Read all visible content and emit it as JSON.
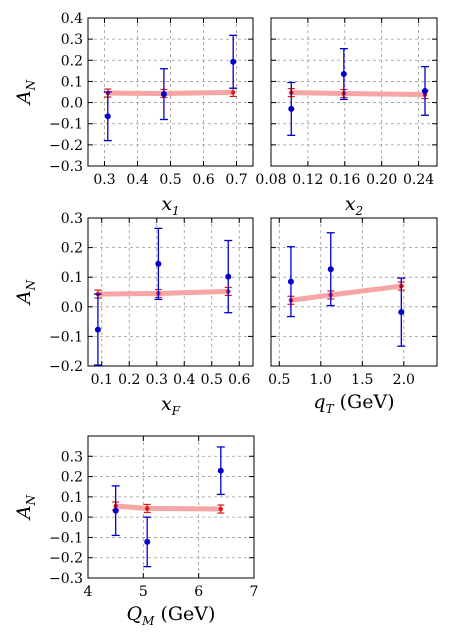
{
  "chart_data": [
    {
      "type": "scatter",
      "panel": "x1",
      "xlabel": {
        "main": "x",
        "sub": "1",
        "unit": ""
      },
      "ylabel": {
        "main": "A",
        "sub": "N"
      },
      "xlim": [
        0.25,
        0.75
      ],
      "ylim": [
        -0.3,
        0.4
      ],
      "xticks": [
        0.3,
        0.4,
        0.5,
        0.6,
        0.7
      ],
      "xtick_labels": [
        "0.3",
        "0.4",
        "0.5",
        "0.6",
        "0.7"
      ],
      "yticks": [
        -0.3,
        -0.2,
        -0.1,
        0.0,
        0.1,
        0.2,
        0.3,
        0.4
      ],
      "ytick_labels": [
        "−0.3",
        "−0.2",
        "−0.1",
        "0.0",
        "0.1",
        "0.2",
        "0.3",
        "0.4"
      ],
      "grid": true,
      "series": [
        {
          "kind": "data",
          "color": "#0000cc",
          "points": [
            {
              "x": 0.31,
              "y": -0.065,
              "err": 0.115
            },
            {
              "x": 0.48,
              "y": 0.04,
              "err": 0.12
            },
            {
              "x": 0.69,
              "y": 0.193,
              "err": 0.125
            }
          ]
        },
        {
          "kind": "model",
          "color": "#f08080",
          "points": [
            {
              "x": 0.31,
              "y": 0.045
            },
            {
              "x": 0.48,
              "y": 0.043
            },
            {
              "x": 0.69,
              "y": 0.048
            }
          ]
        }
      ]
    },
    {
      "type": "scatter",
      "panel": "x2",
      "xlabel": {
        "main": "x",
        "sub": "2",
        "unit": ""
      },
      "ylabel": {
        "main": "",
        "sub": ""
      },
      "xlim": [
        0.08,
        0.26
      ],
      "ylim": [
        -0.3,
        0.4
      ],
      "xticks": [
        0.08,
        0.12,
        0.16,
        0.2,
        0.24
      ],
      "xtick_labels": [
        "0.08",
        "0.12",
        "0.16",
        "0.20",
        "0.24"
      ],
      "yticks": [],
      "ytick_labels": [],
      "grid": true,
      "series": [
        {
          "kind": "data",
          "color": "#0000cc",
          "points": [
            {
              "x": 0.102,
              "y": -0.03,
              "err": 0.125
            },
            {
              "x": 0.159,
              "y": 0.135,
              "err": 0.12
            },
            {
              "x": 0.247,
              "y": 0.055,
              "err": 0.115
            }
          ]
        },
        {
          "kind": "model",
          "color": "#f08080",
          "points": [
            {
              "x": 0.102,
              "y": 0.047
            },
            {
              "x": 0.159,
              "y": 0.043
            },
            {
              "x": 0.247,
              "y": 0.038
            }
          ]
        }
      ]
    },
    {
      "type": "scatter",
      "panel": "xF",
      "xlabel": {
        "main": "x",
        "sub": "F",
        "unit": ""
      },
      "ylabel": {
        "main": "A",
        "sub": "N"
      },
      "xlim": [
        0.05,
        0.65
      ],
      "ylim": [
        -0.2,
        0.3
      ],
      "xticks": [
        0.1,
        0.2,
        0.3,
        0.4,
        0.5,
        0.6
      ],
      "xtick_labels": [
        "0.1",
        "0.2",
        "0.3",
        "0.4",
        "0.5",
        "0.6"
      ],
      "yticks": [
        -0.2,
        -0.1,
        0.0,
        0.1,
        0.2,
        0.3
      ],
      "ytick_labels": [
        "−0.2",
        "−0.1",
        "0.0",
        "0.1",
        "0.2",
        "0.3"
      ],
      "grid": true,
      "series": [
        {
          "kind": "data",
          "color": "#0000cc",
          "points": [
            {
              "x": 0.086,
              "y": -0.077,
              "err": 0.12
            },
            {
              "x": 0.306,
              "y": 0.145,
              "err": 0.12
            },
            {
              "x": 0.56,
              "y": 0.102,
              "err": 0.122
            }
          ]
        },
        {
          "kind": "model",
          "color": "#f08080",
          "points": [
            {
              "x": 0.086,
              "y": 0.043
            },
            {
              "x": 0.306,
              "y": 0.045
            },
            {
              "x": 0.56,
              "y": 0.052
            }
          ]
        }
      ]
    },
    {
      "type": "scatter",
      "panel": "qT",
      "xlabel": {
        "main": "q",
        "sub": "T",
        "unit": " (GeV)"
      },
      "ylabel": {
        "main": "",
        "sub": ""
      },
      "xlim": [
        0.4,
        2.4
      ],
      "ylim": [
        -0.2,
        0.3
      ],
      "xticks": [
        0.5,
        1.0,
        1.5,
        2.0
      ],
      "xtick_labels": [
        "0.5",
        "1.0",
        "1.5",
        "2.0"
      ],
      "yticks": [],
      "ytick_labels": [],
      "grid": true,
      "series": [
        {
          "kind": "data",
          "color": "#0000cc",
          "points": [
            {
              "x": 0.64,
              "y": 0.085,
              "err": 0.118
            },
            {
              "x": 1.12,
              "y": 0.127,
              "err": 0.123
            },
            {
              "x": 1.97,
              "y": -0.018,
              "err": 0.115
            }
          ]
        },
        {
          "kind": "model",
          "color": "#f08080",
          "points": [
            {
              "x": 0.64,
              "y": 0.022
            },
            {
              "x": 1.12,
              "y": 0.04
            },
            {
              "x": 1.97,
              "y": 0.07
            }
          ]
        }
      ]
    },
    {
      "type": "scatter",
      "panel": "QM",
      "xlabel": {
        "main": "Q",
        "sub": "M",
        "unit": " (GeV)"
      },
      "ylabel": {
        "main": "A",
        "sub": "N"
      },
      "xlim": [
        4,
        7
      ],
      "ylim": [
        -0.3,
        0.4
      ],
      "xticks": [
        4,
        5,
        6,
        7
      ],
      "xtick_labels": [
        "4",
        "5",
        "6",
        "7"
      ],
      "yticks": [
        -0.3,
        -0.2,
        -0.1,
        0.0,
        0.1,
        0.2,
        0.3
      ],
      "ytick_labels": [
        "−0.3",
        "−0.2",
        "−0.1",
        "0.0",
        "0.1",
        "0.2",
        "0.3"
      ],
      "grid": true,
      "series": [
        {
          "kind": "data",
          "color": "#0000cc",
          "points": [
            {
              "x": 4.5,
              "y": 0.032,
              "err": 0.122
            },
            {
              "x": 5.07,
              "y": -0.122,
              "err": 0.122
            },
            {
              "x": 6.4,
              "y": 0.229,
              "err": 0.117
            }
          ]
        },
        {
          "kind": "model",
          "color": "#f08080",
          "points": [
            {
              "x": 4.5,
              "y": 0.055
            },
            {
              "x": 5.07,
              "y": 0.043
            },
            {
              "x": 6.4,
              "y": 0.04
            }
          ]
        }
      ]
    }
  ]
}
